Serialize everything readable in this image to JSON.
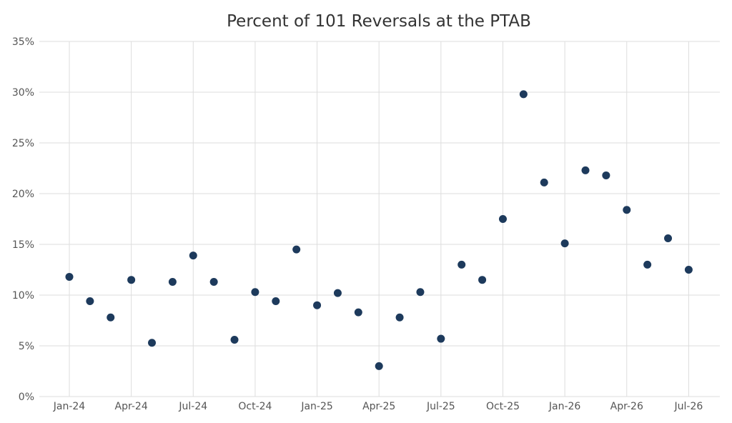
{
  "chart_data": {
    "type": "scatter",
    "title": "Percent of 101 Reversals at the PTAB",
    "xlabel": "",
    "ylabel": "",
    "x_ticks": [
      "Jan-24",
      "Apr-24",
      "Jul-24",
      "Oct-24",
      "Jan-25",
      "Apr-25",
      "Jul-25",
      "Oct-25",
      "Jan-26",
      "Apr-26",
      "Jul-26"
    ],
    "y_ticks": [
      "0%",
      "5%",
      "10%",
      "15%",
      "20%",
      "25%",
      "30%",
      "35%"
    ],
    "ylim": [
      0,
      35
    ],
    "grid": true,
    "x": [
      "Jan-24",
      "Feb-24",
      "Mar-24",
      "Apr-24",
      "May-24",
      "Jun-24",
      "Jul-24",
      "Aug-24",
      "Sep-24",
      "Oct-24",
      "Nov-24",
      "Dec-24",
      "Jan-25",
      "Feb-25",
      "Mar-25",
      "Apr-25",
      "May-25",
      "Jun-25",
      "Jul-25",
      "Aug-25",
      "Sep-25",
      "Oct-25",
      "Nov-25",
      "Dec-25",
      "Jan-26",
      "Feb-26",
      "Mar-26",
      "Apr-26",
      "May-26",
      "Jun-26",
      "Jul-26"
    ],
    "values": [
      11.8,
      9.4,
      7.8,
      11.5,
      5.3,
      11.3,
      13.9,
      11.3,
      5.6,
      10.3,
      9.4,
      14.5,
      9.0,
      10.2,
      8.3,
      3.0,
      7.8,
      10.3,
      5.7,
      13.0,
      11.5,
      17.5,
      29.8,
      21.1,
      15.1,
      22.3,
      21.8,
      18.4,
      13.0,
      15.6,
      12.5
    ],
    "colors": {
      "point": "#1d3a5c",
      "grid": "#dddddd",
      "text": "#555555",
      "title": "#333333"
    }
  }
}
